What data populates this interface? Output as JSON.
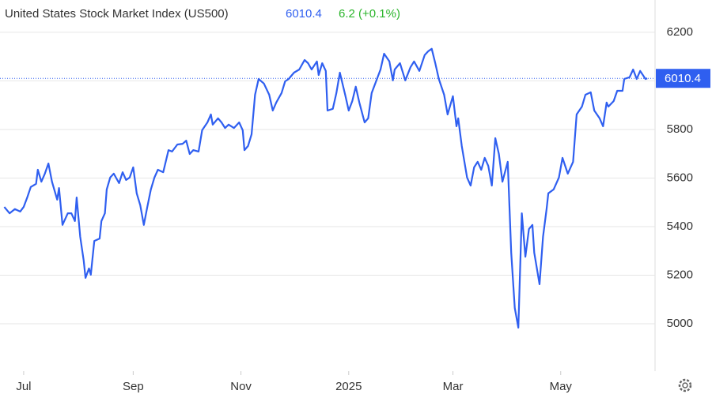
{
  "chart_data": {
    "type": "line",
    "title": "United States Stock Market Index (US500)",
    "price": 6010.4,
    "change": "6.2 (+0.1%)",
    "series": [
      {
        "name": "US500",
        "color": "#2f5ff0",
        "x": [
          -11,
          -8,
          -5,
          -2,
          0,
          2,
          4,
          7,
          8,
          10,
          12,
          14,
          16,
          19,
          20,
          22,
          25,
          27,
          29,
          30,
          32,
          34,
          35,
          37,
          38,
          40,
          43,
          44,
          46,
          47,
          49,
          51,
          54,
          56,
          58,
          60,
          62,
          64,
          66,
          68,
          70,
          72,
          74,
          76,
          79,
          82,
          84,
          87,
          90,
          92,
          94,
          96,
          99,
          101,
          104,
          106,
          107,
          110,
          112,
          114,
          116,
          119,
          122,
          124,
          125,
          127,
          129,
          131,
          133,
          136,
          139,
          141,
          143,
          146,
          148,
          150,
          153,
          156,
          159,
          161,
          163,
          166,
          167,
          169,
          171,
          172,
          175,
          177,
          179,
          182,
          184,
          186,
          188,
          190,
          193,
          195,
          197,
          200,
          202,
          204,
          207,
          209,
          210,
          213,
          216,
          219,
          221,
          224,
          227,
          229,
          231,
          233,
          235,
          238,
          240,
          243,
          245,
          246,
          248,
          251,
          253,
          255,
          257,
          259,
          261,
          263,
          265,
          267,
          269,
          271,
          274,
          276,
          278,
          280,
          282,
          284,
          286,
          288,
          289,
          292,
          294,
          296,
          297,
          300,
          303,
          305,
          308,
          311,
          313,
          316,
          318,
          321,
          323,
          326,
          328,
          330,
          331,
          334,
          336,
          339,
          340,
          343,
          345,
          347,
          349,
          352,
          353
        ],
        "values": [
          5481,
          5455,
          5472,
          5462,
          5481,
          5520,
          5563,
          5576,
          5634,
          5585,
          5618,
          5660,
          5585,
          5511,
          5559,
          5407,
          5455,
          5455,
          5423,
          5520,
          5358,
          5260,
          5189,
          5228,
          5202,
          5341,
          5351,
          5423,
          5455,
          5553,
          5602,
          5618,
          5579,
          5624,
          5592,
          5602,
          5644,
          5537,
          5488,
          5407,
          5481,
          5553,
          5602,
          5634,
          5624,
          5715,
          5709,
          5738,
          5741,
          5754,
          5699,
          5715,
          5709,
          5797,
          5829,
          5862,
          5820,
          5846,
          5829,
          5806,
          5820,
          5806,
          5829,
          5797,
          5715,
          5732,
          5780,
          5943,
          6008,
          5989,
          5943,
          5878,
          5911,
          5950,
          5998,
          6008,
          6034,
          6047,
          6086,
          6073,
          6047,
          6080,
          6024,
          6073,
          6041,
          5878,
          5885,
          5950,
          6034,
          5943,
          5878,
          5917,
          5976,
          5911,
          5829,
          5846,
          5950,
          6008,
          6047,
          6112,
          6080,
          6002,
          6047,
          6073,
          6002,
          6057,
          6080,
          6041,
          6106,
          6122,
          6132,
          6073,
          6008,
          5943,
          5862,
          5937,
          5813,
          5846,
          5732,
          5602,
          5569,
          5644,
          5667,
          5634,
          5683,
          5650,
          5569,
          5764,
          5699,
          5585,
          5667,
          5293,
          5065,
          4984,
          5455,
          5276,
          5390,
          5407,
          5293,
          5163,
          5358,
          5472,
          5537,
          5553,
          5602,
          5683,
          5618,
          5667,
          5862,
          5894,
          5943,
          5953,
          5878,
          5846,
          5813,
          5911,
          5894,
          5917,
          5959,
          5959,
          6008,
          6015,
          6047,
          6008,
          6041,
          6008,
          6010.4
        ]
      }
    ],
    "xlim": [
      -13.4,
      357.4
    ],
    "xticks": [
      {
        "value": 0,
        "label": "Jul"
      },
      {
        "value": 62,
        "label": "Sep"
      },
      {
        "value": 123,
        "label": "Nov"
      },
      {
        "value": 184,
        "label": "2025"
      },
      {
        "value": 243,
        "label": "Mar"
      },
      {
        "value": 304,
        "label": "May"
      }
    ],
    "ylim": [
      4805,
      6333
    ],
    "yticks": [
      5000,
      5200,
      5400,
      5600,
      5800,
      6000,
      6200
    ],
    "grid": true
  }
}
